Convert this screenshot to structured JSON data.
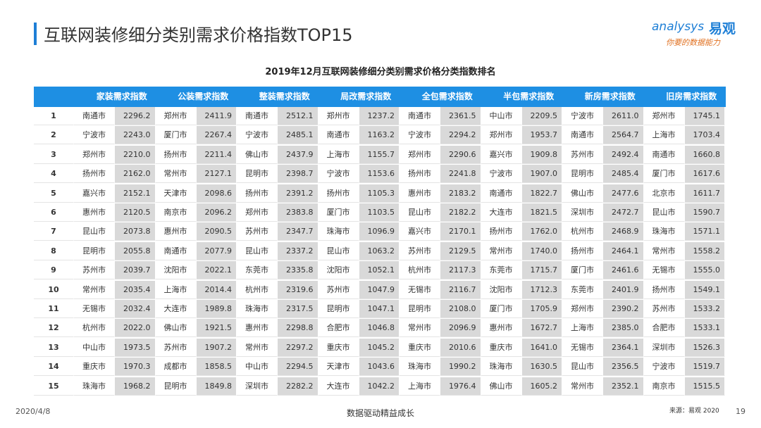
{
  "header": {
    "title": "互联网装修细分类别需求价格指数TOP15",
    "logo": {
      "brand": "analysys",
      "cn": "易观",
      "slogan": "你要的数据能力"
    }
  },
  "table": {
    "caption": "2019年12月互联网装修细分类别需求价格分类指数排名",
    "columns": [
      "家装需求指数",
      "公装需求指数",
      "整装需求指数",
      "局改需求指数",
      "全包需求指数",
      "半包需求指数",
      "新房需求指数",
      "旧房需求指数"
    ],
    "rows": [
      [
        "1",
        "南通市",
        "2296.2",
        "郑州市",
        "2411.9",
        "南通市",
        "2512.1",
        "郑州市",
        "1237.2",
        "南通市",
        "2361.5",
        "中山市",
        "2209.5",
        "宁波市",
        "2611.0",
        "郑州市",
        "1745.1"
      ],
      [
        "2",
        "宁波市",
        "2243.0",
        "厦门市",
        "2267.4",
        "宁波市",
        "2485.1",
        "南通市",
        "1163.2",
        "宁波市",
        "2294.2",
        "郑州市",
        "1953.7",
        "南通市",
        "2564.7",
        "上海市",
        "1703.4"
      ],
      [
        "3",
        "郑州市",
        "2210.0",
        "扬州市",
        "2211.4",
        "佛山市",
        "2437.9",
        "上海市",
        "1155.7",
        "郑州市",
        "2290.6",
        "嘉兴市",
        "1909.8",
        "苏州市",
        "2492.4",
        "南通市",
        "1660.8"
      ],
      [
        "4",
        "扬州市",
        "2162.0",
        "常州市",
        "2127.1",
        "昆明市",
        "2398.7",
        "宁波市",
        "1153.6",
        "扬州市",
        "2241.8",
        "宁波市",
        "1907.0",
        "昆明市",
        "2485.4",
        "厦门市",
        "1617.6"
      ],
      [
        "5",
        "嘉兴市",
        "2152.1",
        "天津市",
        "2098.6",
        "扬州市",
        "2391.2",
        "扬州市",
        "1105.3",
        "惠州市",
        "2183.2",
        "南通市",
        "1822.7",
        "佛山市",
        "2477.6",
        "北京市",
        "1611.7"
      ],
      [
        "6",
        "惠州市",
        "2120.5",
        "南京市",
        "2096.2",
        "郑州市",
        "2383.8",
        "厦门市",
        "1103.5",
        "昆山市",
        "2182.2",
        "大连市",
        "1821.5",
        "深圳市",
        "2472.7",
        "昆山市",
        "1590.7"
      ],
      [
        "7",
        "昆山市",
        "2073.8",
        "惠州市",
        "2090.5",
        "苏州市",
        "2347.7",
        "珠海市",
        "1096.9",
        "嘉兴市",
        "2170.1",
        "扬州市",
        "1762.0",
        "杭州市",
        "2468.9",
        "珠海市",
        "1571.1"
      ],
      [
        "8",
        "昆明市",
        "2055.8",
        "南通市",
        "2077.9",
        "昆山市",
        "2337.2",
        "昆山市",
        "1063.2",
        "苏州市",
        "2129.5",
        "常州市",
        "1740.0",
        "扬州市",
        "2464.1",
        "常州市",
        "1558.2"
      ],
      [
        "9",
        "苏州市",
        "2039.7",
        "沈阳市",
        "2022.1",
        "东莞市",
        "2335.8",
        "沈阳市",
        "1052.1",
        "杭州市",
        "2117.3",
        "东莞市",
        "1715.7",
        "厦门市",
        "2461.6",
        "无锡市",
        "1555.0"
      ],
      [
        "10",
        "常州市",
        "2035.4",
        "上海市",
        "2014.4",
        "杭州市",
        "2319.6",
        "苏州市",
        "1047.9",
        "无锡市",
        "2116.7",
        "沈阳市",
        "1712.3",
        "东莞市",
        "2401.9",
        "扬州市",
        "1549.1"
      ],
      [
        "11",
        "无锡市",
        "2032.4",
        "大连市",
        "1989.8",
        "珠海市",
        "2317.5",
        "昆明市",
        "1047.1",
        "昆明市",
        "2108.0",
        "厦门市",
        "1705.9",
        "郑州市",
        "2390.2",
        "苏州市",
        "1533.2"
      ],
      [
        "12",
        "杭州市",
        "2022.0",
        "佛山市",
        "1921.5",
        "惠州市",
        "2298.8",
        "合肥市",
        "1046.8",
        "常州市",
        "2096.9",
        "惠州市",
        "1672.7",
        "上海市",
        "2385.0",
        "合肥市",
        "1533.1"
      ],
      [
        "13",
        "中山市",
        "1973.5",
        "苏州市",
        "1907.2",
        "常州市",
        "2297.2",
        "重庆市",
        "1045.2",
        "重庆市",
        "2010.6",
        "重庆市",
        "1641.0",
        "无锡市",
        "2364.1",
        "深圳市",
        "1526.3"
      ],
      [
        "14",
        "重庆市",
        "1970.3",
        "成都市",
        "1858.5",
        "中山市",
        "2294.5",
        "天津市",
        "1043.6",
        "珠海市",
        "1990.2",
        "珠海市",
        "1630.5",
        "昆山市",
        "2356.5",
        "宁波市",
        "1519.7"
      ],
      [
        "15",
        "珠海市",
        "1968.2",
        "昆明市",
        "1849.8",
        "深圳市",
        "2282.2",
        "大连市",
        "1042.2",
        "上海市",
        "1976.4",
        "佛山市",
        "1605.2",
        "常州市",
        "2352.1",
        "南京市",
        "1515.5"
      ]
    ]
  },
  "footer": {
    "date": "2020/4/8",
    "slogan": "数据驱动精益成长",
    "source": "来源：易观 2020",
    "page": "19"
  }
}
